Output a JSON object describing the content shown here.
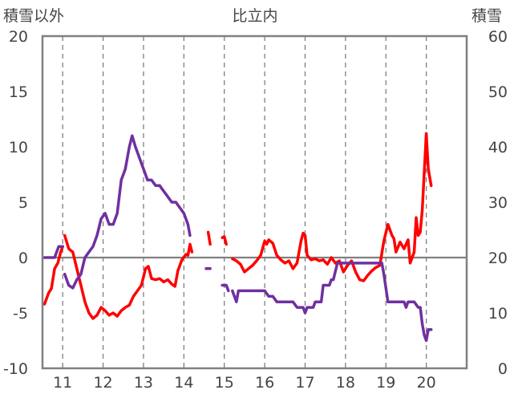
{
  "chart_data": {
    "type": "line",
    "title": "比立内",
    "ylabel_left": "積雪以外",
    "ylabel_right": "積雪",
    "ylim_left": [
      -10,
      20
    ],
    "ylim_right": [
      0,
      60
    ],
    "y_ticks_left": [
      "20",
      "15",
      "10",
      "5",
      "0",
      "-5",
      "-10"
    ],
    "y_ticks_right": [
      "60",
      "50",
      "40",
      "30",
      "20",
      "10",
      "0"
    ],
    "x_ticks": [
      "11",
      "12",
      "13",
      "14",
      "15",
      "16",
      "17",
      "18",
      "19",
      "20"
    ],
    "xlim": [
      10.5,
      21.0
    ],
    "grid": true,
    "grid_style": "dashed",
    "zero_line": true,
    "legend": "none",
    "series": [
      {
        "axis": "left",
        "color": "#ff0000",
        "segments": [
          [
            [
              10.55,
              -4.2
            ],
            [
              10.65,
              -3.2
            ],
            [
              10.72,
              -2.8
            ],
            [
              10.8,
              -1.0
            ],
            [
              10.88,
              -0.5
            ],
            [
              10.95,
              0.5
            ],
            [
              11.0,
              1.0
            ]
          ],
          [
            [
              11.05,
              2.0
            ],
            [
              11.15,
              0.8
            ],
            [
              11.25,
              0.5
            ],
            [
              11.35,
              -1.0
            ],
            [
              11.45,
              -2.5
            ],
            [
              11.55,
              -4.0
            ],
            [
              11.65,
              -5.0
            ],
            [
              11.75,
              -5.5
            ],
            [
              11.85,
              -5.2
            ],
            [
              11.95,
              -4.5
            ],
            [
              12.05,
              -4.8
            ],
            [
              12.15,
              -5.2
            ],
            [
              12.25,
              -5.0
            ],
            [
              12.35,
              -5.3
            ],
            [
              12.45,
              -4.8
            ],
            [
              12.55,
              -4.5
            ],
            [
              12.65,
              -4.3
            ],
            [
              12.75,
              -3.5
            ],
            [
              12.85,
              -3.0
            ],
            [
              12.95,
              -2.5
            ],
            [
              13.05,
              -1.0
            ],
            [
              13.12,
              -0.8
            ],
            [
              13.2,
              -1.9
            ],
            [
              13.3,
              -2.0
            ],
            [
              13.4,
              -1.9
            ],
            [
              13.5,
              -2.2
            ],
            [
              13.6,
              -2.0
            ],
            [
              13.7,
              -2.4
            ],
            [
              13.78,
              -2.6
            ],
            [
              13.85,
              -1.2
            ],
            [
              13.95,
              -0.2
            ],
            [
              14.05,
              0.3
            ],
            [
              14.1,
              0.2
            ],
            [
              14.15,
              1.2
            ],
            [
              14.2,
              0.5
            ]
          ],
          [
            [
              14.6,
              2.3
            ],
            [
              14.65,
              1.2
            ]
          ],
          [
            [
              14.95,
              1.8
            ],
            [
              15.0,
              1.9
            ],
            [
              15.05,
              1.2
            ]
          ],
          [
            [
              15.2,
              -0.1
            ],
            [
              15.3,
              -0.3
            ],
            [
              15.4,
              -0.6
            ],
            [
              15.5,
              -1.3
            ],
            [
              15.6,
              -1.0
            ],
            [
              15.7,
              -0.7
            ],
            [
              15.8,
              -0.3
            ],
            [
              15.9,
              0.2
            ],
            [
              16.0,
              1.5
            ],
            [
              16.05,
              1.2
            ],
            [
              16.1,
              1.6
            ],
            [
              16.2,
              1.3
            ],
            [
              16.3,
              0.2
            ],
            [
              16.4,
              -0.2
            ],
            [
              16.5,
              -0.5
            ],
            [
              16.6,
              -0.3
            ],
            [
              16.7,
              -1.0
            ],
            [
              16.8,
              -0.5
            ],
            [
              16.9,
              1.5
            ],
            [
              16.95,
              2.2
            ],
            [
              17.0,
              2.0
            ],
            [
              17.05,
              0.2
            ],
            [
              17.15,
              -0.2
            ],
            [
              17.25,
              -0.1
            ],
            [
              17.35,
              -0.3
            ],
            [
              17.45,
              -0.2
            ],
            [
              17.55,
              -0.6
            ],
            [
              17.65,
              0.0
            ],
            [
              17.75,
              -0.5
            ],
            [
              17.85,
              -0.3
            ],
            [
              17.95,
              -1.3
            ],
            [
              18.05,
              -0.7
            ],
            [
              18.15,
              -0.3
            ],
            [
              18.25,
              -1.3
            ],
            [
              18.35,
              -2.0
            ],
            [
              18.45,
              -2.1
            ],
            [
              18.55,
              -1.6
            ],
            [
              18.65,
              -1.2
            ],
            [
              18.75,
              -0.9
            ],
            [
              18.85,
              -0.7
            ],
            [
              18.95,
              1.5
            ],
            [
              19.05,
              3.0
            ],
            [
              19.15,
              2.0
            ],
            [
              19.2,
              1.7
            ],
            [
              19.25,
              0.5
            ],
            [
              19.35,
              1.4
            ],
            [
              19.45,
              0.8
            ],
            [
              19.55,
              1.6
            ],
            [
              19.6,
              -0.5
            ],
            [
              19.7,
              0.5
            ],
            [
              19.75,
              3.6
            ],
            [
              19.8,
              2.0
            ],
            [
              19.85,
              2.3
            ],
            [
              19.9,
              4.3
            ],
            [
              20.0,
              11.2
            ],
            [
              20.05,
              8.0
            ],
            [
              20.12,
              6.5
            ]
          ]
        ]
      },
      {
        "axis": "right",
        "color": "#7030a0",
        "segments": [
          [
            [
              10.55,
              20
            ],
            [
              10.8,
              20
            ],
            [
              10.9,
              22
            ],
            [
              11.0,
              22
            ]
          ],
          [
            [
              11.05,
              17
            ],
            [
              11.15,
              15
            ],
            [
              11.25,
              14.5
            ],
            [
              11.35,
              16
            ],
            [
              11.45,
              17
            ],
            [
              11.55,
              20
            ],
            [
              11.65,
              21
            ],
            [
              11.75,
              22
            ],
            [
              11.85,
              24
            ],
            [
              11.95,
              27
            ],
            [
              12.05,
              28
            ],
            [
              12.15,
              26
            ],
            [
              12.25,
              26
            ],
            [
              12.35,
              28
            ],
            [
              12.45,
              34
            ],
            [
              12.55,
              36
            ],
            [
              12.65,
              40
            ],
            [
              12.72,
              42
            ],
            [
              12.8,
              40
            ],
            [
              12.9,
              38
            ],
            [
              13.0,
              36
            ],
            [
              13.1,
              34
            ],
            [
              13.2,
              34
            ],
            [
              13.3,
              33
            ],
            [
              13.4,
              33
            ],
            [
              13.5,
              32
            ],
            [
              13.6,
              31
            ],
            [
              13.7,
              30
            ],
            [
              13.8,
              30
            ],
            [
              13.9,
              29
            ],
            [
              14.0,
              28
            ],
            [
              14.1,
              26
            ],
            [
              14.15,
              24
            ]
          ],
          [
            [
              14.55,
              18
            ],
            [
              14.65,
              18
            ]
          ],
          [
            [
              14.95,
              15
            ],
            [
              15.05,
              15
            ],
            [
              15.1,
              14
            ]
          ],
          [
            [
              15.2,
              14
            ],
            [
              15.3,
              12
            ],
            [
              15.35,
              14
            ],
            [
              15.5,
              14
            ],
            [
              15.8,
              14
            ],
            [
              16.0,
              14
            ],
            [
              16.1,
              13
            ],
            [
              16.2,
              13
            ],
            [
              16.3,
              12
            ],
            [
              16.5,
              12
            ],
            [
              16.7,
              12
            ],
            [
              16.8,
              11
            ],
            [
              16.95,
              11
            ],
            [
              17.0,
              10
            ],
            [
              17.05,
              11
            ],
            [
              17.2,
              11
            ],
            [
              17.25,
              12
            ],
            [
              17.4,
              12
            ],
            [
              17.45,
              15
            ],
            [
              17.6,
              15
            ],
            [
              17.65,
              16
            ],
            [
              17.7,
              16
            ],
            [
              17.8,
              19
            ],
            [
              17.9,
              19
            ],
            [
              18.0,
              19
            ],
            [
              18.1,
              19
            ],
            [
              18.2,
              19
            ],
            [
              18.3,
              19
            ],
            [
              18.4,
              19
            ],
            [
              18.5,
              19
            ],
            [
              18.6,
              19
            ],
            [
              18.7,
              19
            ],
            [
              18.8,
              19
            ],
            [
              18.9,
              19
            ],
            [
              18.95,
              17
            ],
            [
              19.05,
              12
            ],
            [
              19.2,
              12
            ],
            [
              19.3,
              12
            ],
            [
              19.45,
              12
            ],
            [
              19.5,
              11
            ],
            [
              19.55,
              12
            ],
            [
              19.7,
              12
            ],
            [
              19.8,
              11
            ],
            [
              19.85,
              11
            ],
            [
              19.9,
              8
            ],
            [
              19.95,
              6
            ],
            [
              20.0,
              5
            ],
            [
              20.05,
              7
            ],
            [
              20.12,
              7
            ]
          ]
        ]
      }
    ]
  }
}
